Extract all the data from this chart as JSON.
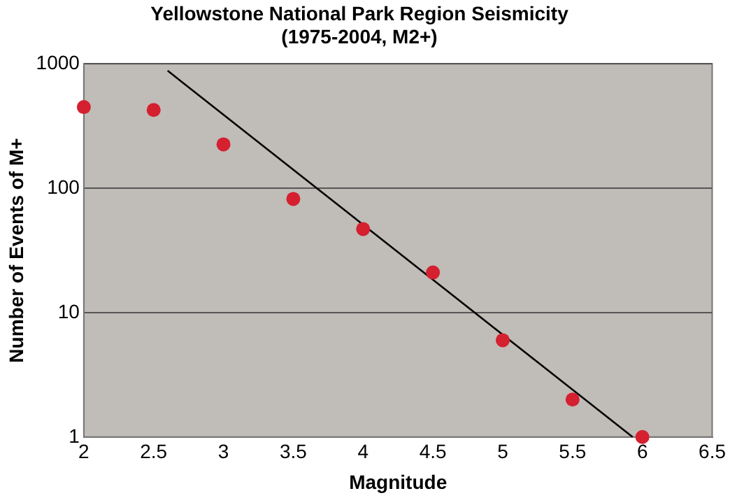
{
  "chart_data": {
    "type": "scatter",
    "title": "Yellowstone National Park Region Seismicity",
    "subtitle": "(1975-2004, M2+)",
    "xlabel": "Magnitude",
    "ylabel": "Number of Events of M+",
    "series": [
      {
        "type": "scatter",
        "color": "#d4202f",
        "x": [
          2,
          2.5,
          3,
          3.5,
          4,
          4.5,
          5,
          5.5,
          6
        ],
        "values": [
          449,
          425,
          225,
          82,
          47,
          21,
          6,
          2,
          1
        ],
        "marker": "circle"
      },
      {
        "type": "line",
        "color": "#000000",
        "x": [
          2.6,
          5.93
        ],
        "values": [
          880,
          1
        ],
        "marker": "none"
      }
    ],
    "xlim": [
      2,
      6.5
    ],
    "xticks": [
      2,
      2.5,
      3,
      3.5,
      4,
      4.5,
      5,
      5.5,
      6,
      6.5
    ],
    "ylim": [
      1,
      1000
    ],
    "yticks": [
      1,
      10,
      100,
      1000
    ],
    "log": "y",
    "grid": "y",
    "legend": false
  }
}
